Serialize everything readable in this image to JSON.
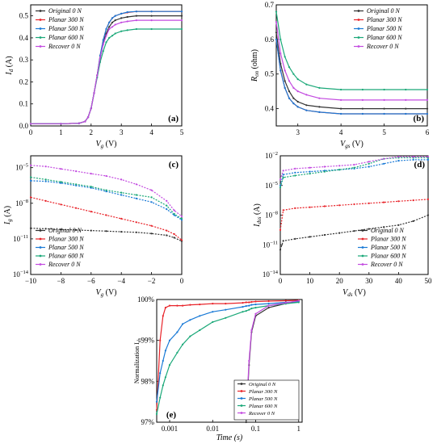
{
  "series_names": [
    "Original 0 N",
    "Planar 300 N",
    "Planar 500 N",
    "Planar 600 N",
    "Recover 0 N"
  ],
  "colors": [
    "#333333",
    "#e8242a",
    "#1a7ad6",
    "#1aa878",
    "#c34be0"
  ],
  "chart_data": [
    {
      "id": "a",
      "type": "line",
      "panel_label": "(a)",
      "xlabel_base": "V",
      "xlabel_sub": "g",
      "xlabel_unit": " (V)",
      "ylabel_base": "I",
      "ylabel_sub": "d",
      "ylabel_unit": " (A)",
      "xlim": [
        0,
        5
      ],
      "ylim": [
        0,
        0.55
      ],
      "yscale": "linear",
      "xticks": [
        0,
        1,
        2,
        3,
        4,
        5
      ],
      "yticks": [
        0.0,
        0.1,
        0.2,
        0.3,
        0.4,
        0.5
      ],
      "xtick_labels": [
        "0",
        "1",
        "2",
        "3",
        "4",
        "5"
      ],
      "ytick_labels": [
        "0.0",
        "0.1",
        "0.2",
        "0.3",
        "0.4",
        "0.5"
      ],
      "legend": "top-left",
      "x": [
        0,
        1,
        1.6,
        1.8,
        1.9,
        2.0,
        2.1,
        2.2,
        2.3,
        2.4,
        2.5,
        2.6,
        2.7,
        2.8,
        3.0,
        3.2,
        3.5,
        4.0,
        5.0
      ],
      "series": [
        {
          "name": "Original 0 N",
          "values": [
            0.01,
            0.01,
            0.012,
            0.02,
            0.04,
            0.08,
            0.15,
            0.23,
            0.31,
            0.38,
            0.42,
            0.45,
            0.47,
            0.48,
            0.49,
            0.495,
            0.5,
            0.5,
            0.5
          ]
        },
        {
          "name": "Planar 300 N",
          "values": [
            0.01,
            0.01,
            0.012,
            0.02,
            0.04,
            0.08,
            0.15,
            0.23,
            0.32,
            0.39,
            0.44,
            0.47,
            0.49,
            0.5,
            0.51,
            0.515,
            0.52,
            0.52,
            0.52
          ]
        },
        {
          "name": "Planar 500 N",
          "values": [
            0.01,
            0.01,
            0.012,
            0.02,
            0.04,
            0.08,
            0.15,
            0.23,
            0.32,
            0.39,
            0.44,
            0.47,
            0.49,
            0.5,
            0.51,
            0.517,
            0.52,
            0.52,
            0.52
          ]
        },
        {
          "name": "Planar 600 N",
          "values": [
            0.01,
            0.01,
            0.012,
            0.02,
            0.04,
            0.08,
            0.15,
            0.22,
            0.29,
            0.34,
            0.38,
            0.4,
            0.41,
            0.42,
            0.43,
            0.435,
            0.44,
            0.44,
            0.44
          ]
        },
        {
          "name": "Recover 0 N",
          "values": [
            0.01,
            0.01,
            0.012,
            0.02,
            0.04,
            0.08,
            0.15,
            0.23,
            0.31,
            0.37,
            0.41,
            0.44,
            0.45,
            0.46,
            0.47,
            0.475,
            0.48,
            0.48,
            0.48
          ]
        }
      ]
    },
    {
      "id": "b",
      "type": "line",
      "panel_label": "(b)",
      "xlabel_base": "V",
      "xlabel_sub": "gs",
      "xlabel_unit": " (V)",
      "ylabel_base": "R",
      "ylabel_sub": "on",
      "ylabel_unit": " (ohm)",
      "xlim": [
        2.5,
        6
      ],
      "ylim": [
        0.35,
        0.7
      ],
      "yscale": "linear",
      "xticks": [
        3,
        4,
        5,
        6
      ],
      "yticks": [
        0.4,
        0.5,
        0.6,
        0.7
      ],
      "xtick_labels": [
        "3",
        "4",
        "5",
        "6"
      ],
      "ytick_labels": [
        "0.4",
        "0.5",
        "0.6",
        "0.7"
      ],
      "legend": "top-right",
      "x": [
        2.5,
        2.6,
        2.7,
        2.8,
        2.9,
        3.0,
        3.2,
        3.5,
        4.0,
        4.5,
        5.0,
        5.5,
        6.0
      ],
      "series": [
        {
          "name": "Original 0 N",
          "values": [
            0.62,
            0.53,
            0.48,
            0.45,
            0.43,
            0.42,
            0.41,
            0.405,
            0.4,
            0.4,
            0.4,
            0.4,
            0.4
          ]
        },
        {
          "name": "Planar 300 N",
          "values": [
            0.6,
            0.51,
            0.46,
            0.43,
            0.415,
            0.405,
            0.395,
            0.39,
            0.385,
            0.385,
            0.385,
            0.385,
            0.385
          ]
        },
        {
          "name": "Planar 500 N",
          "values": [
            0.6,
            0.51,
            0.46,
            0.43,
            0.415,
            0.405,
            0.395,
            0.39,
            0.385,
            0.385,
            0.385,
            0.385,
            0.385
          ]
        },
        {
          "name": "Planar 600 N",
          "values": [
            0.68,
            0.6,
            0.55,
            0.52,
            0.5,
            0.485,
            0.47,
            0.46,
            0.455,
            0.455,
            0.455,
            0.455,
            0.455
          ]
        },
        {
          "name": "Recover 0 N",
          "values": [
            0.65,
            0.56,
            0.51,
            0.48,
            0.46,
            0.45,
            0.44,
            0.43,
            0.425,
            0.425,
            0.425,
            0.425,
            0.425
          ]
        }
      ]
    },
    {
      "id": "c",
      "type": "line",
      "panel_label": "(c)",
      "xlabel_base": "V",
      "xlabel_sub": "g",
      "xlabel_unit": " (V)",
      "ylabel_base": "I",
      "ylabel_sub": "g",
      "ylabel_unit": " (A)",
      "xlim": [
        -10,
        0
      ],
      "ylim_exp": [
        -14,
        -4
      ],
      "yscale": "log",
      "xticks": [
        -10,
        -8,
        -6,
        -4,
        -2,
        0
      ],
      "yticks_exp": [
        -5,
        -8,
        -11,
        -14
      ],
      "xtick_labels": [
        "−10",
        "−8",
        "−6",
        "−4",
        "−2",
        "0"
      ],
      "legend": "bottom-left",
      "x": [
        -10,
        -9,
        -8,
        -7,
        -6,
        -5,
        -4,
        -3,
        -2,
        -1,
        -0.5,
        0
      ],
      "series": [
        {
          "name": "Original 0 N",
          "exponents": [
            -10.1,
            -10.15,
            -10.2,
            -10.25,
            -10.3,
            -10.35,
            -10.4,
            -10.45,
            -10.55,
            -10.7,
            -10.9,
            -11.2
          ]
        },
        {
          "name": "Planar 300 N",
          "exponents": [
            -7.5,
            -7.8,
            -8.1,
            -8.4,
            -8.7,
            -9.0,
            -9.3,
            -9.6,
            -9.9,
            -10.3,
            -10.6,
            -11.1
          ]
        },
        {
          "name": "Planar 500 N",
          "exponents": [
            -6.1,
            -6.15,
            -6.3,
            -6.5,
            -6.7,
            -7.0,
            -7.3,
            -7.6,
            -7.9,
            -8.5,
            -9.0,
            -9.4
          ]
        },
        {
          "name": "Planar 600 N",
          "exponents": [
            -5.8,
            -6.0,
            -6.2,
            -6.4,
            -6.6,
            -6.9,
            -7.1,
            -7.3,
            -7.5,
            -8.2,
            -8.9,
            -9.3
          ]
        },
        {
          "name": "Recover 0 N",
          "exponents": [
            -4.8,
            -4.9,
            -5.1,
            -5.3,
            -5.5,
            -5.7,
            -6.0,
            -6.4,
            -6.9,
            -7.8,
            -8.6,
            -9.1
          ]
        }
      ]
    },
    {
      "id": "d",
      "type": "line",
      "panel_label": "(d)",
      "xlabel_base": "V",
      "xlabel_sub": "ds",
      "xlabel_unit": " (V)",
      "ylabel_base": "I",
      "ylabel_sub": "dss",
      "ylabel_unit": " (A)",
      "xlim": [
        0,
        50
      ],
      "ylim_exp": [
        -14,
        -2
      ],
      "yscale": "log",
      "xticks": [
        0,
        10,
        20,
        30,
        40,
        50
      ],
      "yticks_exp": [
        -2,
        -5,
        -8,
        -11,
        -14
      ],
      "xtick_labels": [
        "0",
        "10",
        "20",
        "30",
        "40",
        "50"
      ],
      "legend": "bottom-right",
      "x": [
        0,
        1,
        5,
        10,
        15,
        20,
        25,
        30,
        35,
        40,
        45,
        50
      ],
      "series": [
        {
          "name": "Original 0 N",
          "exponents": [
            -11.5,
            -10.6,
            -10.4,
            -10.2,
            -10.0,
            -9.8,
            -9.6,
            -9.4,
            -9.2,
            -9.0,
            -8.6,
            -8.0
          ]
        },
        {
          "name": "Planar 300 N",
          "exponents": [
            -9.5,
            -7.5,
            -7.3,
            -7.2,
            -7.1,
            -7.0,
            -6.9,
            -6.8,
            -6.7,
            -6.6,
            -6.5,
            -6.4
          ]
        },
        {
          "name": "Planar 500 N",
          "exponents": [
            -5.0,
            -3.9,
            -3.7,
            -3.6,
            -3.5,
            -3.4,
            -3.3,
            -3.1,
            -2.8,
            -2.5,
            -2.4,
            -2.4
          ]
        },
        {
          "name": "Planar 600 N",
          "exponents": [
            -5.2,
            -4.2,
            -4.0,
            -3.8,
            -3.6,
            -3.4,
            -3.2,
            -2.8,
            -2.3,
            -2.2,
            -2.2,
            -2.2
          ]
        },
        {
          "name": "Recover 0 N",
          "exponents": [
            -4.4,
            -3.5,
            -3.3,
            -3.2,
            -3.1,
            -3.0,
            -2.9,
            -2.6,
            -2.3,
            -2.1,
            -2.1,
            -2.1
          ]
        }
      ]
    },
    {
      "id": "e",
      "type": "line",
      "panel_label": "(e)",
      "xlabel": "Time (s)",
      "ylabel": "Normalization I",
      "ylabel_sub": "ds",
      "xlim": [
        0.0005,
        1.2
      ],
      "ylim": [
        97,
        100
      ],
      "xscale": "log",
      "xticks": [
        0.001,
        0.01,
        0.1,
        1
      ],
      "yticks": [
        97,
        98,
        99,
        100
      ],
      "xtick_labels": [
        "0.001",
        "0.01",
        "0.1",
        "1"
      ],
      "ytick_labels": [
        "97%",
        "98%",
        "99%",
        "100%"
      ],
      "legend": "bottom-right",
      "x": [
        0.0005,
        0.0006,
        0.0007,
        0.0008,
        0.001,
        0.0015,
        0.002,
        0.003,
        0.005,
        0.01,
        0.02,
        0.05,
        0.06,
        0.07,
        0.08,
        0.1,
        0.2,
        0.5,
        1.0
      ],
      "series": [
        {
          "name": "Original 0 N",
          "values": [
            null,
            null,
            null,
            null,
            null,
            null,
            null,
            null,
            null,
            null,
            null,
            null,
            97.0,
            98.4,
            99.2,
            99.6,
            99.8,
            99.9,
            99.95
          ]
        },
        {
          "name": "Planar 300 N",
          "values": [
            97.3,
            99.0,
            99.6,
            99.8,
            99.85,
            99.85,
            99.85,
            99.87,
            99.88,
            99.9,
            99.9,
            99.92,
            99.93,
            99.93,
            99.94,
            99.95,
            99.96,
            99.97,
            99.98
          ]
        },
        {
          "name": "Planar 500 N",
          "values": [
            97.5,
            98.2,
            98.5,
            98.75,
            99.0,
            99.2,
            99.4,
            99.5,
            99.6,
            99.7,
            99.75,
            99.82,
            99.84,
            99.85,
            99.87,
            99.88,
            99.9,
            99.93,
            99.95
          ]
        },
        {
          "name": "Planar 600 N",
          "values": [
            97.2,
            97.6,
            97.9,
            98.1,
            98.4,
            98.7,
            98.9,
            99.1,
            99.25,
            99.45,
            99.55,
            99.7,
            99.72,
            99.75,
            99.78,
            99.8,
            99.85,
            99.9,
            99.93
          ]
        },
        {
          "name": "Recover 0 N",
          "values": [
            null,
            null,
            null,
            null,
            null,
            null,
            null,
            null,
            null,
            null,
            null,
            null,
            97.1,
            98.5,
            99.25,
            99.65,
            99.85,
            99.92,
            99.97
          ]
        }
      ]
    }
  ]
}
